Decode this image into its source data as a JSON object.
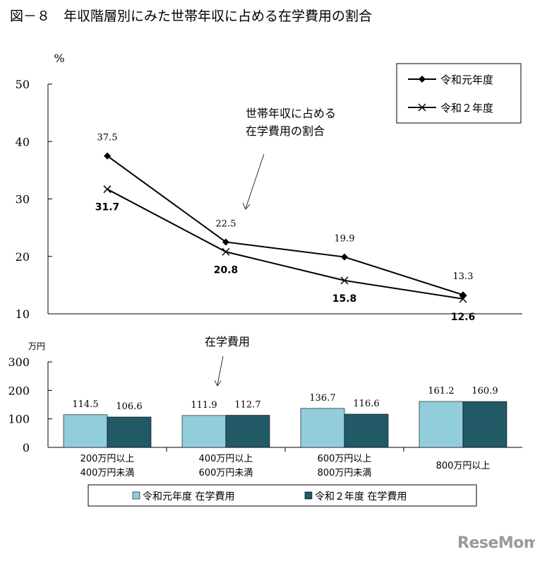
{
  "title": "図－８　年収階層別にみた世帯年収に占める在学費用の割合",
  "watermark": "ReseMom",
  "colors": {
    "line": "#000000",
    "bar_series_1": "#92cddc",
    "bar_series_2": "#215967"
  },
  "chart_data": [
    {
      "type": "line",
      "unit_label": "%",
      "annotation": [
        "世帯年収に占める",
        "在学費用の割合"
      ],
      "categories": [
        "200万円以上400万円未満",
        "400万円以上600万円未満",
        "600万円以上800万円未満",
        "800万円以上"
      ],
      "ylim": [
        10,
        50
      ],
      "yticks": [
        10,
        20,
        30,
        40,
        50
      ],
      "legend": "top-right",
      "series": [
        {
          "name": "令和元年度",
          "marker": "diamond",
          "values": [
            37.5,
            22.5,
            19.9,
            13.3
          ],
          "labels": [
            "37.5",
            "22.5",
            "19.9",
            "13.3"
          ]
        },
        {
          "name": "令和２年度",
          "marker": "x",
          "values": [
            31.7,
            20.8,
            15.8,
            12.6
          ],
          "labels": [
            "31.7",
            "20.8",
            "15.8",
            "12.6"
          ]
        }
      ]
    },
    {
      "type": "bar",
      "unit_label": "万円",
      "annotation": "在学費用",
      "categories": [
        [
          "200万円以上",
          "400万円未満"
        ],
        [
          "400万円以上",
          "600万円未満"
        ],
        [
          "600万円以上",
          "800万円未満"
        ],
        [
          "800万円以上"
        ]
      ],
      "ylim": [
        0,
        300
      ],
      "yticks": [
        0,
        100,
        200,
        300
      ],
      "legend": "bottom",
      "series": [
        {
          "name": "令和元年度 在学費用",
          "values": [
            114.5,
            111.9,
            136.7,
            161.2
          ],
          "labels": [
            "114.5",
            "111.9",
            "136.7",
            "161.2"
          ]
        },
        {
          "name": "令和２年度 在学費用",
          "values": [
            106.6,
            112.7,
            116.6,
            160.9
          ],
          "labels": [
            "106.6",
            "112.7",
            "116.6",
            "160.9"
          ]
        }
      ]
    }
  ]
}
